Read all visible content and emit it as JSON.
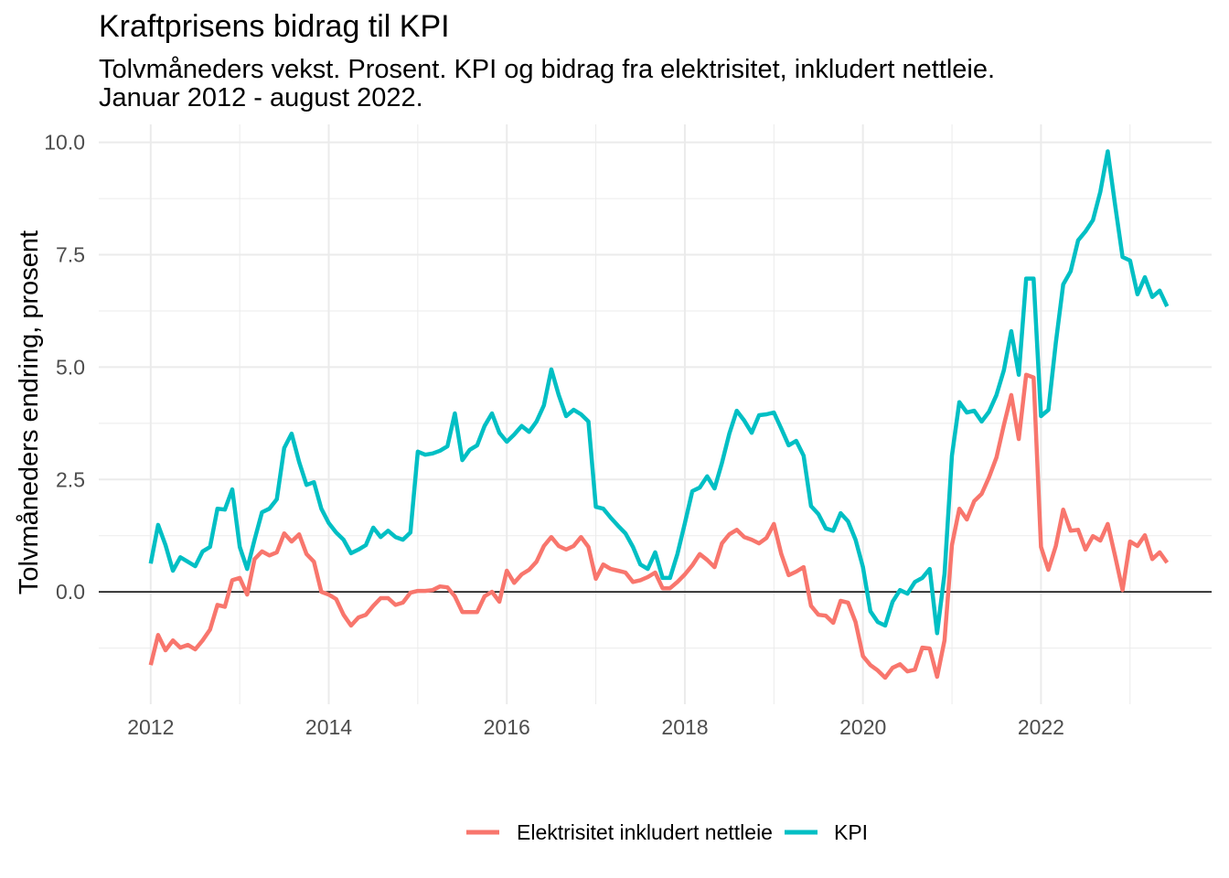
{
  "chart_data": {
    "type": "line",
    "title": "Kraftprisens bidrag til KPI",
    "subtitle": [
      "Tolvmåneders vekst. Prosent. KPI og bidrag fra elektrisitet, inkludert nettleie.",
      "Januar 2012 - august 2022."
    ],
    "ylabel": "Tolvmåneders endring, prosent",
    "xticks": [
      "2012",
      "2014",
      "2016",
      "2018",
      "2020",
      "2022"
    ],
    "yticks": [
      "0.0",
      "2.5",
      "5.0",
      "7.5",
      "10.0"
    ],
    "xlim": [
      "2011-06",
      "2023-12"
    ],
    "ylim": [
      -2.5,
      10.4
    ],
    "hline": 0,
    "grid": true,
    "legend_position": "bottom",
    "x": [
      "2012-01",
      "2012-02",
      "2012-03",
      "2012-04",
      "2012-05",
      "2012-06",
      "2012-07",
      "2012-08",
      "2012-09",
      "2012-10",
      "2012-11",
      "2012-12",
      "2013-01",
      "2013-02",
      "2013-03",
      "2013-04",
      "2013-05",
      "2013-06",
      "2013-07",
      "2013-08",
      "2013-09",
      "2013-10",
      "2013-11",
      "2013-12",
      "2014-01",
      "2014-02",
      "2014-03",
      "2014-04",
      "2014-05",
      "2014-06",
      "2014-07",
      "2014-08",
      "2014-09",
      "2014-10",
      "2014-11",
      "2014-12",
      "2015-01",
      "2015-02",
      "2015-03",
      "2015-04",
      "2015-05",
      "2015-06",
      "2015-07",
      "2015-08",
      "2015-09",
      "2015-10",
      "2015-11",
      "2015-12",
      "2016-01",
      "2016-02",
      "2016-03",
      "2016-04",
      "2016-05",
      "2016-06",
      "2016-07",
      "2016-08",
      "2016-09",
      "2016-10",
      "2016-11",
      "2016-12",
      "2017-01",
      "2017-02",
      "2017-03",
      "2017-04",
      "2017-05",
      "2017-06",
      "2017-07",
      "2017-08",
      "2017-09",
      "2017-10",
      "2017-11",
      "2017-12",
      "2018-01",
      "2018-02",
      "2018-03",
      "2018-04",
      "2018-05",
      "2018-06",
      "2018-07",
      "2018-08",
      "2018-09",
      "2018-10",
      "2018-11",
      "2018-12",
      "2019-01",
      "2019-02",
      "2019-03",
      "2019-04",
      "2019-05",
      "2019-06",
      "2019-07",
      "2019-08",
      "2019-09",
      "2019-10",
      "2019-11",
      "2019-12",
      "2020-01",
      "2020-02",
      "2020-03",
      "2020-04",
      "2020-05",
      "2020-06",
      "2020-07",
      "2020-08",
      "2020-09",
      "2020-10",
      "2020-11",
      "2020-12",
      "2021-01",
      "2021-02",
      "2021-03",
      "2021-04",
      "2021-05",
      "2021-06",
      "2021-07",
      "2021-08",
      "2021-09",
      "2021-10",
      "2021-11",
      "2021-12",
      "2022-01",
      "2022-02",
      "2022-03",
      "2022-04",
      "2022-05",
      "2022-06",
      "2022-07",
      "2022-08",
      "2022-09",
      "2022-10",
      "2022-11",
      "2022-12",
      "2023-01",
      "2023-02",
      "2023-03",
      "2023-04",
      "2023-05",
      "2023-06"
    ],
    "series": [
      {
        "name": "Elektrisitet inkludert nettleie",
        "color": "#F8766D",
        "values": [
          -1.63,
          -0.96,
          -1.3,
          -1.08,
          -1.24,
          -1.18,
          -1.28,
          -1.08,
          -0.84,
          -0.29,
          -0.33,
          0.26,
          0.31,
          -0.06,
          0.73,
          0.9,
          0.81,
          0.88,
          1.3,
          1.12,
          1.28,
          0.84,
          0.67,
          0.0,
          -0.06,
          -0.16,
          -0.51,
          -0.75,
          -0.57,
          -0.51,
          -0.31,
          -0.14,
          -0.14,
          -0.29,
          -0.24,
          -0.02,
          0.02,
          0.02,
          0.04,
          0.12,
          0.1,
          -0.1,
          -0.45,
          -0.45,
          -0.45,
          -0.1,
          0.0,
          -0.22,
          0.47,
          0.2,
          0.39,
          0.49,
          0.67,
          1.02,
          1.22,
          1.02,
          0.94,
          1.02,
          1.22,
          1.0,
          0.29,
          0.61,
          0.51,
          0.47,
          0.43,
          0.22,
          0.26,
          0.33,
          0.43,
          0.08,
          0.08,
          0.22,
          0.39,
          0.59,
          0.84,
          0.71,
          0.55,
          1.08,
          1.28,
          1.38,
          1.22,
          1.16,
          1.08,
          1.2,
          1.51,
          0.84,
          0.37,
          0.45,
          0.55,
          -0.31,
          -0.51,
          -0.53,
          -0.69,
          -0.2,
          -0.24,
          -0.67,
          -1.43,
          -1.63,
          -1.75,
          -1.91,
          -1.69,
          -1.61,
          -1.77,
          -1.73,
          -1.24,
          -1.26,
          -1.89,
          -1.08,
          1.04,
          1.85,
          1.61,
          2.02,
          2.18,
          2.55,
          2.99,
          3.71,
          4.38,
          3.4,
          4.83,
          4.77,
          1.0,
          0.49,
          1.02,
          1.83,
          1.36,
          1.38,
          0.94,
          1.24,
          1.14,
          1.51,
          0.79,
          0.04,
          1.12,
          1.02,
          1.26,
          0.73,
          0.88,
          0.65
        ]
      },
      {
        "name": "KPI",
        "color": "#00BFC4",
        "values": [
          0.63,
          1.49,
          1.04,
          0.47,
          0.77,
          0.67,
          0.57,
          0.9,
          1.0,
          1.85,
          1.83,
          2.28,
          1.0,
          0.51,
          1.16,
          1.77,
          1.85,
          2.06,
          3.2,
          3.52,
          2.89,
          2.38,
          2.44,
          1.85,
          1.53,
          1.32,
          1.16,
          0.86,
          0.94,
          1.04,
          1.43,
          1.22,
          1.36,
          1.22,
          1.16,
          1.32,
          3.12,
          3.05,
          3.08,
          3.14,
          3.24,
          3.97,
          2.93,
          3.16,
          3.26,
          3.69,
          3.97,
          3.54,
          3.34,
          3.5,
          3.69,
          3.56,
          3.79,
          4.15,
          4.95,
          4.38,
          3.91,
          4.05,
          3.95,
          3.79,
          1.89,
          1.85,
          1.65,
          1.47,
          1.3,
          1.0,
          0.61,
          0.51,
          0.88,
          0.31,
          0.31,
          0.84,
          1.53,
          2.24,
          2.32,
          2.57,
          2.3,
          2.87,
          3.52,
          4.03,
          3.81,
          3.54,
          3.93,
          3.95,
          3.99,
          3.63,
          3.26,
          3.36,
          3.03,
          1.91,
          1.73,
          1.41,
          1.36,
          1.75,
          1.57,
          1.16,
          0.55,
          -0.43,
          -0.67,
          -0.75,
          -0.22,
          0.04,
          -0.04,
          0.22,
          0.31,
          0.51,
          -0.92,
          0.4,
          3.03,
          4.22,
          3.99,
          4.03,
          3.79,
          4.01,
          4.38,
          4.93,
          5.8,
          4.83,
          6.97,
          6.97,
          3.91,
          4.05,
          5.54,
          6.84,
          7.13,
          7.82,
          8.02,
          8.27,
          8.9,
          9.8,
          8.6,
          7.45,
          7.37,
          6.62,
          7.0,
          6.56,
          6.7,
          6.35
        ]
      }
    ]
  }
}
